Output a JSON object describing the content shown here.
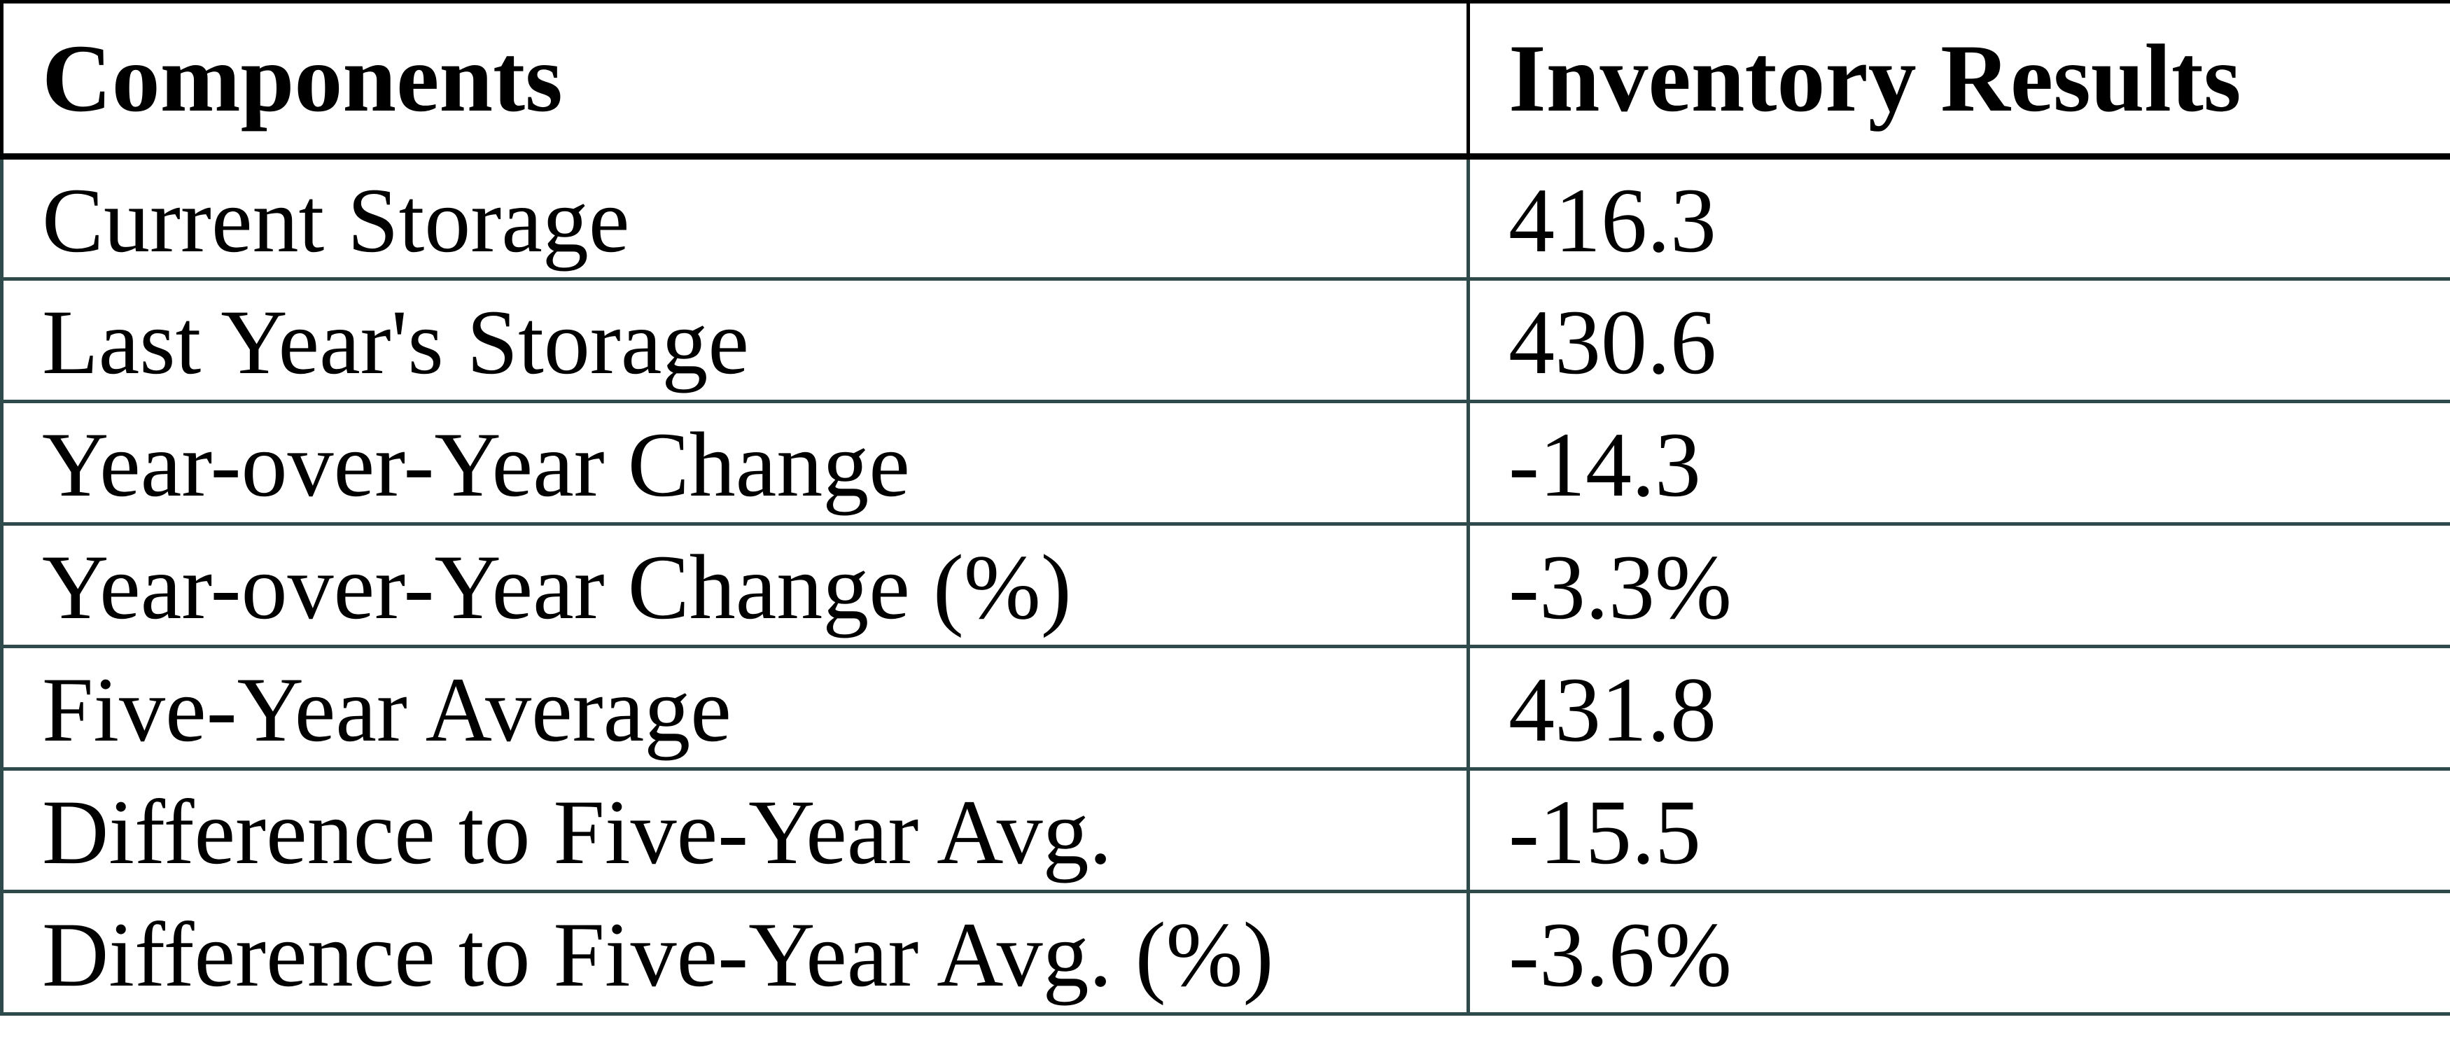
{
  "colors": {
    "header_border": "#000000",
    "body_border": "#2F4A4A",
    "text": "#000000",
    "background": "#FFFFFF"
  },
  "table": {
    "columns": [
      "Components",
      "Inventory Results"
    ],
    "rows": [
      {
        "component": "Current Storage",
        "value": "416.3"
      },
      {
        "component": "Last Year's Storage",
        "value": "430.6"
      },
      {
        "component": "Year-over-Year Change",
        "value": "-14.3"
      },
      {
        "component": "Year-over-Year Change (%)",
        "value": "-3.3%"
      },
      {
        "component": "Five-Year Average",
        "value": "431.8"
      },
      {
        "component": "Difference to Five-Year Avg.",
        "value": "-15.5"
      },
      {
        "component": "Difference to Five-Year Avg. (%)",
        "value": "-3.6%"
      }
    ]
  }
}
